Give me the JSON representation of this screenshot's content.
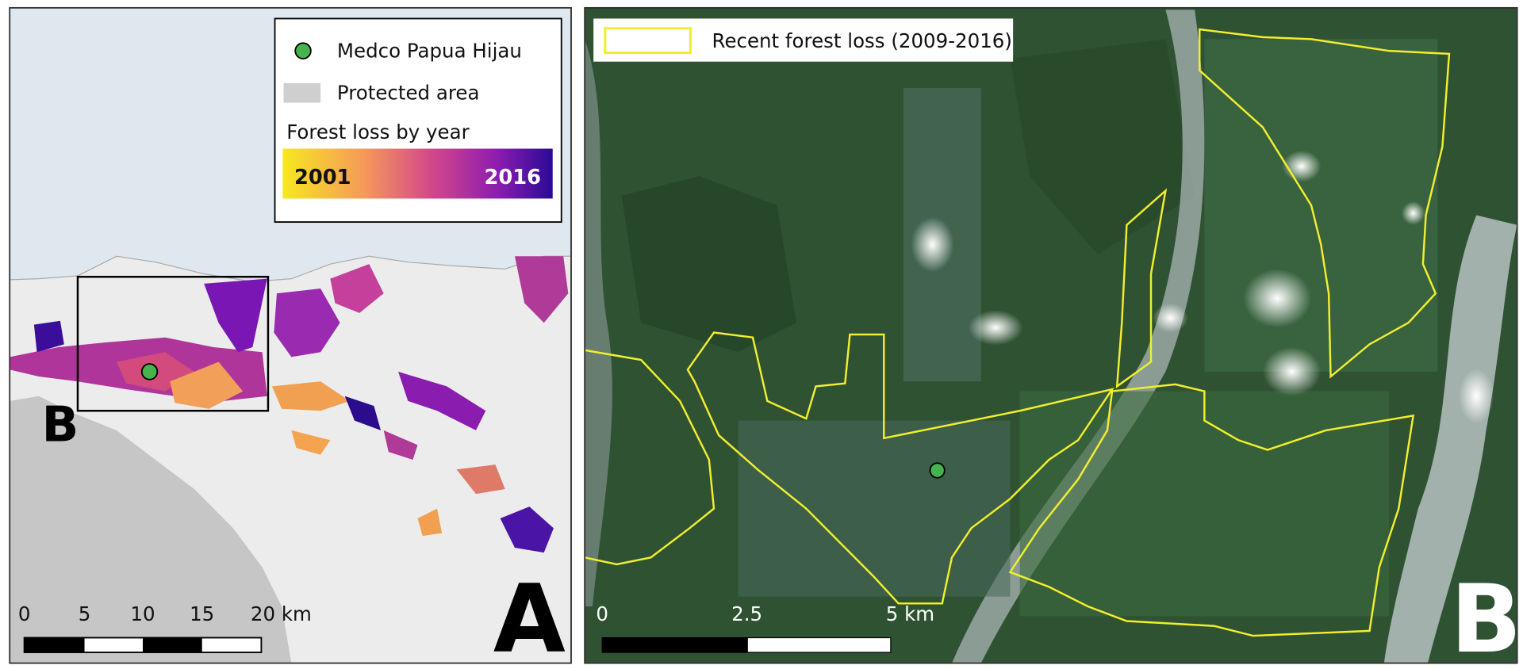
{
  "panel_a": {
    "legend": {
      "site": "Medco Papua Hijau",
      "protected": "Protected area",
      "gradient_title": "Forest loss by year",
      "gradient_start": "2001",
      "gradient_end": "2016"
    },
    "scale_labels": [
      "0",
      "5",
      "10",
      "15",
      "20 km"
    ],
    "inset_label": "B",
    "panel_label": "A"
  },
  "panel_b": {
    "legend": {
      "loss": "Recent forest loss (2009-2016)"
    },
    "scale_labels": [
      "0",
      "2.5",
      "5 km"
    ],
    "panel_label": "B"
  }
}
